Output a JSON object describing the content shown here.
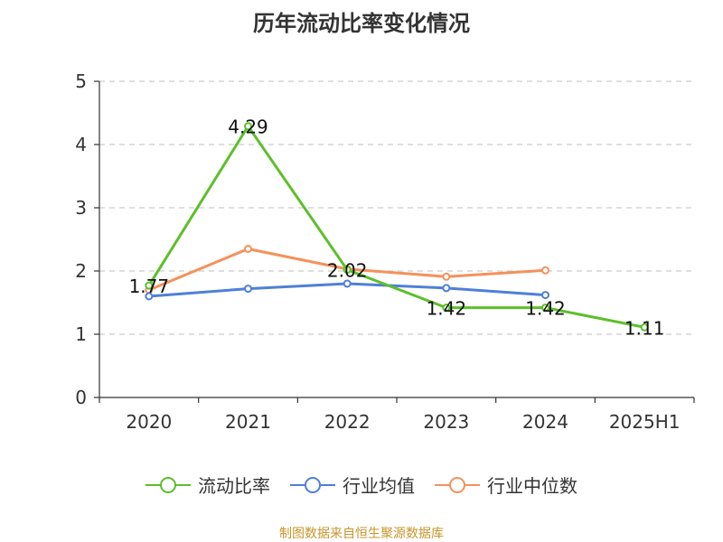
{
  "chart_data": {
    "type": "line",
    "title": "历年流动比率变化情况",
    "categories": [
      "2020",
      "2021",
      "2022",
      "2023",
      "2024",
      "2025H1"
    ],
    "ylim": [
      0,
      5
    ],
    "yticks": [
      0,
      1,
      2,
      3,
      4,
      5
    ],
    "grid": true,
    "legend_position": "bottom",
    "series": [
      {
        "name": "流动比率",
        "color": "#5cbf2a",
        "values": [
          1.77,
          4.29,
          2.02,
          1.42,
          1.42,
          1.11
        ],
        "labels": [
          "1.77",
          "4.29",
          "2.02",
          "1.42",
          "1.42",
          "1.11"
        ]
      },
      {
        "name": "行业均值",
        "color": "#4f7fd8",
        "values": [
          1.6,
          1.72,
          1.8,
          1.73,
          1.62,
          null
        ]
      },
      {
        "name": "行业中位数",
        "color": "#f5915a",
        "values": [
          1.7,
          2.35,
          2.03,
          1.91,
          2.01,
          null
        ]
      }
    ]
  },
  "footer": "制图数据来自恒生聚源数据库"
}
